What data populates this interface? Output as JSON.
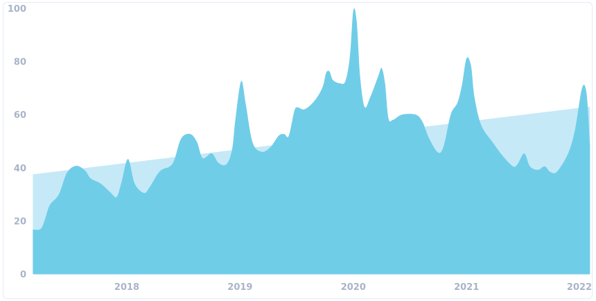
{
  "chart_data": {
    "type": "area",
    "title": "",
    "xlabel": "",
    "ylabel": "",
    "ylim": [
      0,
      100
    ],
    "xlim": [
      2017.17,
      2022.09
    ],
    "yticks": [
      "0",
      "20",
      "40",
      "60",
      "80",
      "100"
    ],
    "xticks": [
      "2018",
      "2019",
      "2020",
      "2021",
      "2022"
    ],
    "grid": false,
    "colors": {
      "series": "#70cde8",
      "trend": "#c6e9f7",
      "tick_text": "#a9b4c8",
      "border": "#e3eaf7"
    },
    "series": [
      {
        "x": [
          2017.17,
          2017.24,
          2017.28,
          2017.32,
          2017.4,
          2017.47,
          2017.55,
          2017.63,
          2017.68,
          2017.77,
          2017.86,
          2017.91,
          2017.95,
          2018.01,
          2018.07,
          2018.15,
          2018.2,
          2018.29,
          2018.38,
          2018.42,
          2018.48,
          2018.56,
          2018.62,
          2018.67,
          2018.75,
          2018.81,
          2018.88,
          2018.93,
          2018.96,
          2019.01,
          2019.05,
          2019.11,
          2019.19,
          2019.27,
          2019.34,
          2019.39,
          2019.43,
          2019.48,
          2019.51,
          2019.57,
          2019.66,
          2019.73,
          2019.76,
          2019.79,
          2019.82,
          2019.88,
          2019.93,
          2019.97,
          2020.0,
          2020.03,
          2020.06,
          2020.1,
          2020.15,
          2020.22,
          2020.25,
          2020.28,
          2020.31,
          2020.35,
          2020.43,
          2020.55,
          2020.61,
          2020.67,
          2020.75,
          2020.8,
          2020.86,
          2020.92,
          2020.96,
          2021.0,
          2021.04,
          2021.07,
          2021.13,
          2021.23,
          2021.32,
          2021.41,
          2021.45,
          2021.51,
          2021.56,
          2021.63,
          2021.69,
          2021.74,
          2021.8,
          2021.9,
          2021.96,
          2022.02,
          2022.06,
          2022.09
        ],
        "values": [
          16.7,
          17,
          21,
          26,
          30,
          38,
          40.7,
          39,
          36,
          34,
          30.5,
          29,
          34,
          43.3,
          34,
          30.5,
          32.6,
          38.6,
          40.5,
          43,
          51,
          52.7,
          49.6,
          43.6,
          45.4,
          41.8,
          41.3,
          47,
          58.7,
          72.6,
          64,
          49.6,
          46,
          47.8,
          52,
          52.7,
          52,
          61.4,
          62.7,
          62,
          65.3,
          70.5,
          75.7,
          76.2,
          73,
          71.8,
          72.6,
          82,
          99.2,
          95,
          74.4,
          62.9,
          66.6,
          74.4,
          77.5,
          71.8,
          58.7,
          58,
          60,
          60,
          57.4,
          51,
          45.7,
          48.4,
          60,
          64.5,
          71.3,
          81.2,
          78.3,
          66.6,
          56,
          49.6,
          44.4,
          40.5,
          41.3,
          45.4,
          40.5,
          39.2,
          40.5,
          38.4,
          38.6,
          45.7,
          54.8,
          70,
          67.9,
          48.8
        ]
      },
      {
        "x": [
          2017.17,
          2022.09
        ],
        "values": [
          37.5,
          63
        ]
      }
    ]
  }
}
